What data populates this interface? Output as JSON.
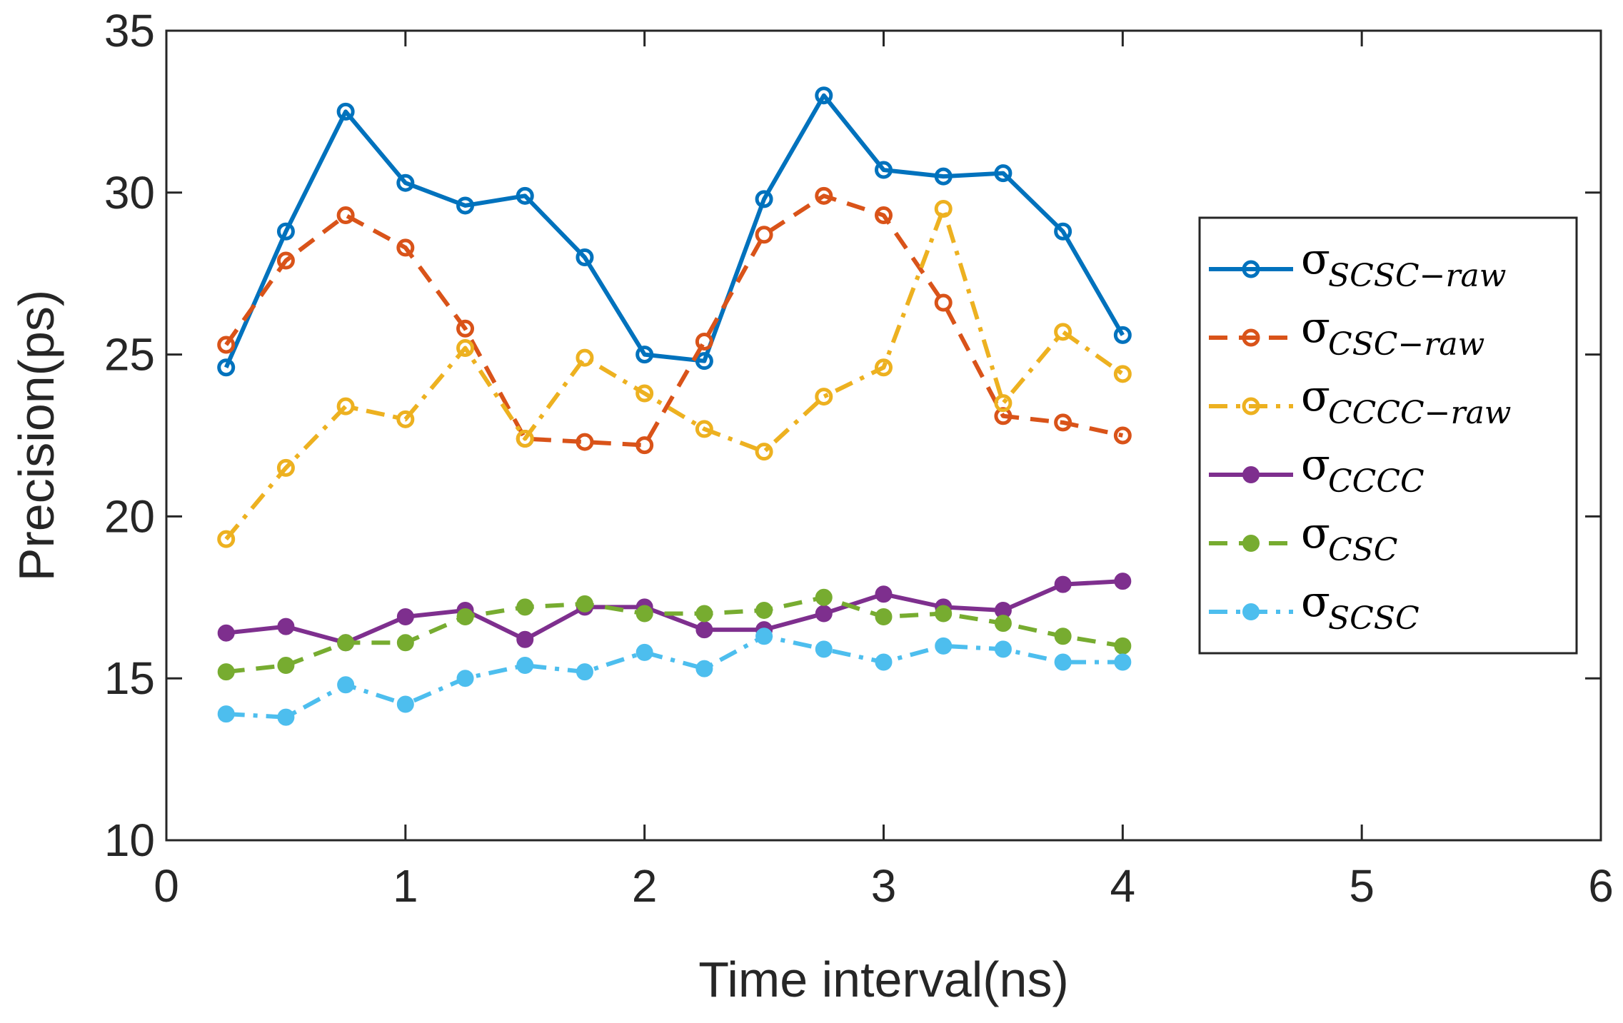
{
  "chart_data": {
    "type": "line",
    "title": "",
    "xlabel": "Time interval(ns)",
    "ylabel": "Precision(ps)",
    "xlim": [
      0,
      6
    ],
    "ylim": [
      10,
      35
    ],
    "xticks": [
      "0",
      "1",
      "2",
      "3",
      "4",
      "5",
      "6"
    ],
    "yticks": [
      "10",
      "15",
      "20",
      "25",
      "30",
      "35"
    ],
    "grid": false,
    "legend_position": "right",
    "x": [
      0.25,
      0.5,
      0.75,
      1.0,
      1.25,
      1.5,
      1.75,
      2.0,
      2.25,
      2.5,
      2.75,
      3.0,
      3.25,
      3.5,
      3.75,
      4.0
    ],
    "series": [
      {
        "name": "σ_SCSC−raw",
        "symbol": "σ",
        "subscript": "SCSC−raw",
        "color": "#0072BD",
        "dash": "solid",
        "marker": "open-circle",
        "values": [
          24.6,
          28.8,
          32.5,
          30.3,
          29.6,
          29.9,
          28.0,
          25.0,
          24.8,
          29.8,
          33.0,
          30.7,
          30.5,
          30.6,
          28.8,
          25.6
        ]
      },
      {
        "name": "σ_CSC−raw",
        "symbol": "σ",
        "subscript": "CSC−raw",
        "color": "#D95319",
        "dash": "dashed",
        "marker": "open-circle",
        "values": [
          25.3,
          27.9,
          29.3,
          28.3,
          25.8,
          22.4,
          22.3,
          22.2,
          25.4,
          28.7,
          29.9,
          29.3,
          26.6,
          23.1,
          22.9,
          22.5
        ]
      },
      {
        "name": "σ_CCCC−raw",
        "symbol": "σ",
        "subscript": "CCCC−raw",
        "color": "#EDB120",
        "dash": "dashdot",
        "marker": "open-circle",
        "values": [
          19.3,
          21.5,
          23.4,
          23.0,
          25.2,
          22.4,
          24.9,
          23.8,
          22.7,
          22.0,
          23.7,
          24.6,
          29.5,
          23.5,
          25.7,
          24.4
        ]
      },
      {
        "name": "σ_CCCC",
        "symbol": "σ",
        "subscript": "CCCC",
        "color": "#7E2F8E",
        "dash": "solid",
        "marker": "filled-circle",
        "values": [
          16.4,
          16.6,
          16.1,
          16.9,
          17.1,
          16.2,
          17.2,
          17.2,
          16.5,
          16.5,
          17.0,
          17.6,
          17.2,
          17.1,
          17.9,
          18.0
        ]
      },
      {
        "name": "σ_CSC",
        "symbol": "σ",
        "subscript": "CSC",
        "color": "#77AC30",
        "dash": "dashed",
        "marker": "filled-circle",
        "values": [
          15.2,
          15.4,
          16.1,
          16.1,
          16.9,
          17.2,
          17.3,
          17.0,
          17.0,
          17.1,
          17.5,
          16.9,
          17.0,
          16.7,
          16.3,
          16.0
        ]
      },
      {
        "name": "σ_SCSC",
        "symbol": "σ",
        "subscript": "SCSC",
        "color": "#4DBEEE",
        "dash": "dashdot",
        "marker": "filled-circle",
        "values": [
          13.9,
          13.8,
          14.8,
          14.2,
          15.0,
          15.4,
          15.2,
          15.8,
          15.3,
          16.3,
          15.9,
          15.5,
          16.0,
          15.9,
          15.5,
          15.5
        ]
      }
    ]
  }
}
